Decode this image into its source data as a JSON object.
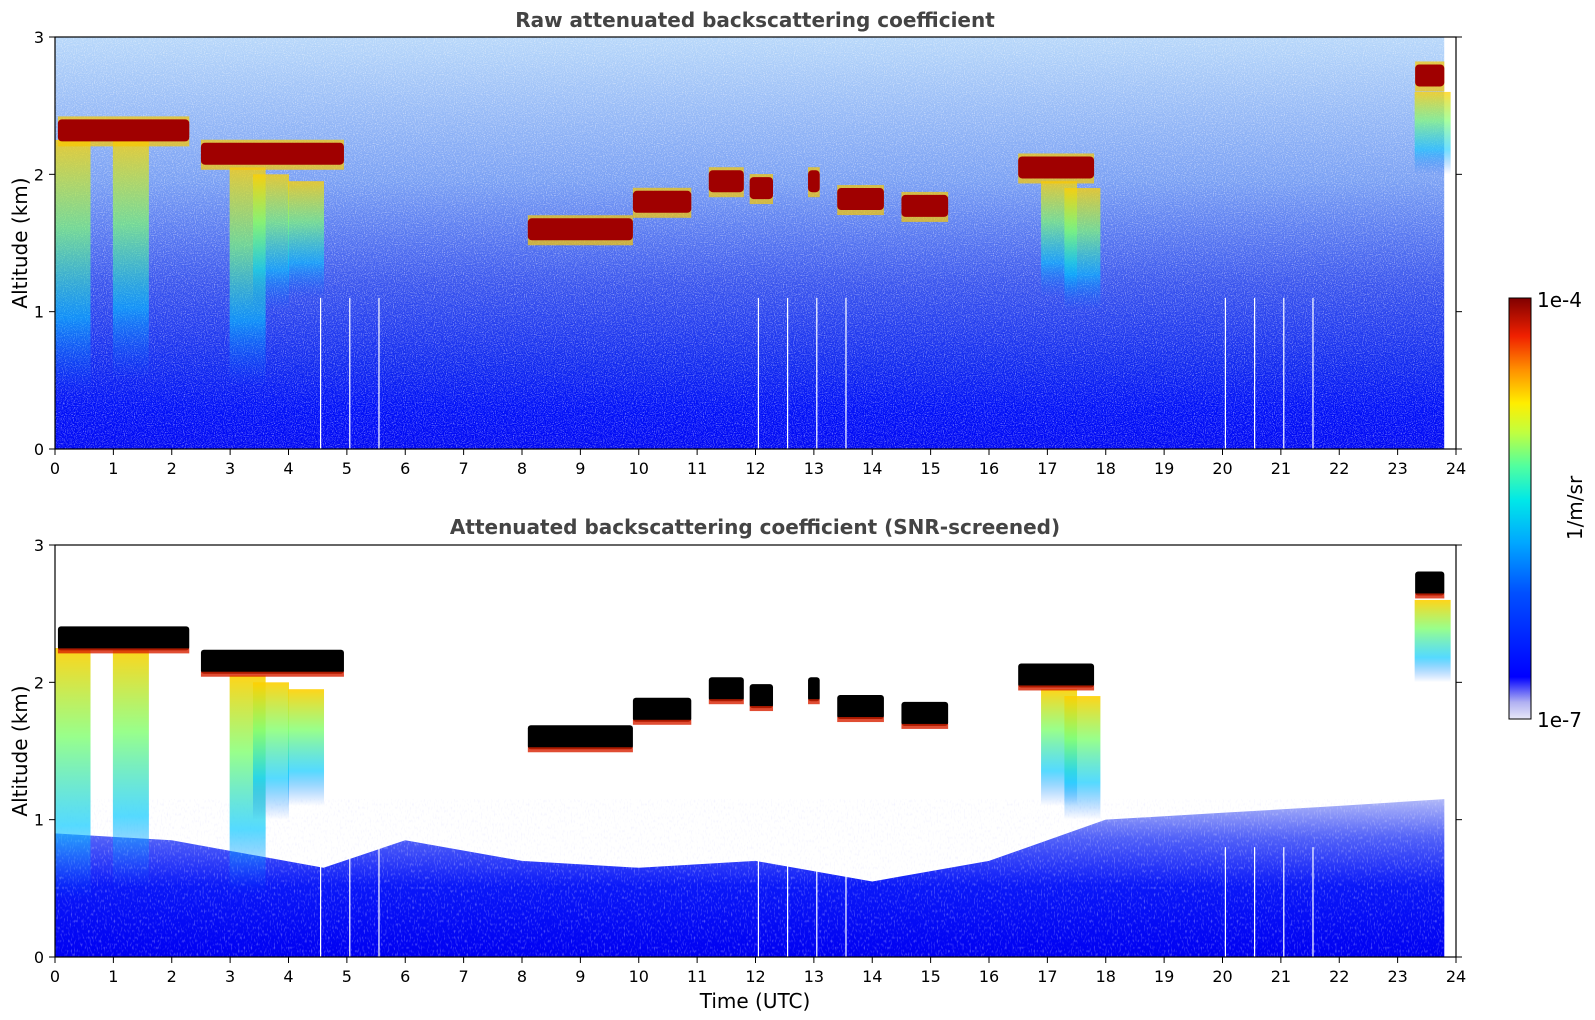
{
  "colorbar": {
    "max_label": "1e-4",
    "min_label": "1e-7",
    "unit_label": "1/m/sr",
    "scale": "log",
    "range": [
      1e-07,
      0.0001
    ],
    "colormap": [
      "#e8e8f8",
      "#c8c8f4",
      "#9a9af0",
      "#0000ff",
      "#0028ff",
      "#0064ff",
      "#00aaff",
      "#00e4f4",
      "#40ffb4",
      "#a0ff58",
      "#ffee00",
      "#ffa000",
      "#ff4000",
      "#dd0000",
      "#800000"
    ]
  },
  "chart_data": [
    {
      "type": "heatmap",
      "title": "Raw attenuated backscattering coefficient",
      "xlabel": "",
      "ylabel": "Altitude (km)",
      "xlim": [
        0,
        24
      ],
      "ylim": [
        0,
        3
      ],
      "x_ticks": [
        "0",
        "1",
        "2",
        "3",
        "4",
        "5",
        "6",
        "7",
        "8",
        "9",
        "10",
        "11",
        "12",
        "13",
        "14",
        "15",
        "16",
        "17",
        "18",
        "19",
        "20",
        "21",
        "22",
        "23",
        "24"
      ],
      "y_ticks": [
        "0",
        "1",
        "2",
        "3"
      ],
      "data_end_hour": 23.8,
      "cloud_layers": [
        {
          "x_start": 0.05,
          "x_end": 2.3,
          "altitude_km": 2.32
        },
        {
          "x_start": 2.5,
          "x_end": 4.95,
          "altitude_km": 2.15
        },
        {
          "x_start": 8.1,
          "x_end": 9.9,
          "altitude_km": 1.6
        },
        {
          "x_start": 9.9,
          "x_end": 10.9,
          "altitude_km": 1.8
        },
        {
          "x_start": 11.2,
          "x_end": 11.8,
          "altitude_km": 1.95
        },
        {
          "x_start": 11.9,
          "x_end": 12.3,
          "altitude_km": 1.9
        },
        {
          "x_start": 12.9,
          "x_end": 13.1,
          "altitude_km": 1.95
        },
        {
          "x_start": 13.4,
          "x_end": 14.2,
          "altitude_km": 1.82
        },
        {
          "x_start": 14.5,
          "x_end": 15.3,
          "altitude_km": 1.77
        },
        {
          "x_start": 16.5,
          "x_end": 17.8,
          "altitude_km": 2.05
        },
        {
          "x_start": 23.3,
          "x_end": 23.8,
          "altitude_km": 2.72
        }
      ],
      "precipitation_shafts": [
        {
          "x": 0.3,
          "from_km": 2.25,
          "to_km": 0.4
        },
        {
          "x": 1.3,
          "from_km": 2.25,
          "to_km": 0.5
        },
        {
          "x": 3.3,
          "from_km": 2.05,
          "to_km": 0.45
        },
        {
          "x": 3.7,
          "from_km": 2.0,
          "to_km": 1.0
        },
        {
          "x": 4.3,
          "from_km": 1.95,
          "to_km": 1.1
        },
        {
          "x": 17.2,
          "from_km": 1.95,
          "to_km": 1.1
        },
        {
          "x": 17.6,
          "from_km": 1.9,
          "to_km": 1.0
        },
        {
          "x": 23.6,
          "from_km": 2.6,
          "to_km": 2.0
        }
      ],
      "data_gaps_hours": [
        4.55,
        5.05,
        5.55,
        12.05,
        12.55,
        13.05,
        13.55,
        20.05,
        20.55,
        21.05,
        21.55
      ]
    },
    {
      "type": "heatmap",
      "title": "Attenuated backscattering coefficient (SNR-screened)",
      "xlabel": "Time (UTC)",
      "ylabel": "Altitude (km)",
      "xlim": [
        0,
        24
      ],
      "ylim": [
        0,
        3
      ],
      "x_ticks": [
        "0",
        "1",
        "2",
        "3",
        "4",
        "5",
        "6",
        "7",
        "8",
        "9",
        "10",
        "11",
        "12",
        "13",
        "14",
        "15",
        "16",
        "17",
        "18",
        "19",
        "20",
        "21",
        "22",
        "23",
        "24"
      ],
      "y_ticks": [
        "0",
        "1",
        "2",
        "3"
      ],
      "data_end_hour": 23.8,
      "boundary_layer_top_km": [
        {
          "x": 0,
          "top": 0.9
        },
        {
          "x": 2,
          "top": 0.85
        },
        {
          "x": 4.6,
          "top": 0.65
        },
        {
          "x": 6,
          "top": 0.85
        },
        {
          "x": 8,
          "top": 0.7
        },
        {
          "x": 10,
          "top": 0.65
        },
        {
          "x": 12,
          "top": 0.7
        },
        {
          "x": 14,
          "top": 0.55
        },
        {
          "x": 16,
          "top": 0.7
        },
        {
          "x": 18,
          "top": 1.0
        },
        {
          "x": 20,
          "top": 1.05
        },
        {
          "x": 22,
          "top": 1.1
        },
        {
          "x": 23.8,
          "top": 1.15
        }
      ]
    }
  ]
}
